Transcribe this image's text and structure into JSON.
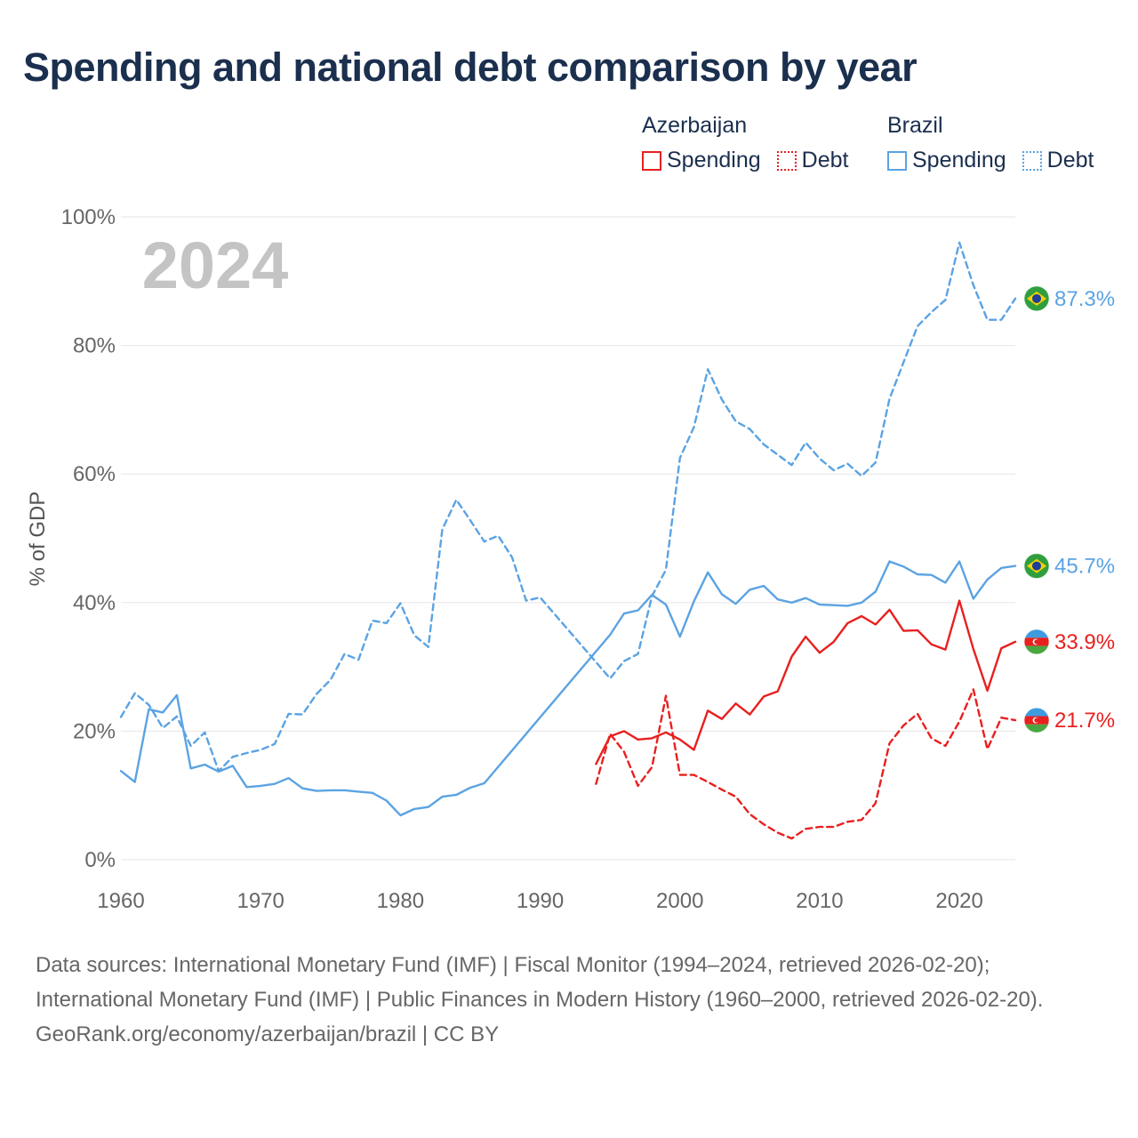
{
  "title": "Spending and national debt comparison by year",
  "legend": {
    "groups": [
      {
        "name": "Azerbaijan",
        "color": "#e8201f",
        "items": [
          "Spending",
          "Debt"
        ]
      },
      {
        "name": "Brazil",
        "color": "#5ba3e3",
        "items": [
          "Spending",
          "Debt"
        ]
      }
    ]
  },
  "footer": {
    "sources": "Data sources: International Monetary Fund (IMF) | Fiscal Monitor (1994–2024, retrieved 2026-02-20); International Monetary Fund (IMF) | Public Finances in Modern History (1960–2000, retrieved 2026-02-20).",
    "credit": "GeoRank.org/economy/azerbaijan/brazil | CC BY"
  },
  "chart_data": {
    "type": "line",
    "year_label": "2024",
    "ylabel": "% of GDP",
    "xlim": [
      1960,
      2024
    ],
    "ylim": [
      0,
      100
    ],
    "xticks": [
      1960,
      1970,
      1980,
      1990,
      2000,
      2010,
      2020
    ],
    "yticks": [
      0,
      20,
      40,
      60,
      80,
      100
    ],
    "ytick_labels": [
      "0%",
      "20%",
      "40%",
      "60%",
      "80%",
      "100%"
    ],
    "series": [
      {
        "name": "Brazil Debt",
        "country": "Brazil",
        "metric": "Debt",
        "color": "#5ba3e3",
        "dash": true,
        "end_label": "87.3%",
        "flag": "brazil",
        "x": [
          1960,
          1961,
          1962,
          1963,
          1964,
          1965,
          1966,
          1967,
          1968,
          1969,
          1970,
          1971,
          1972,
          1973,
          1974,
          1975,
          1976,
          1977,
          1978,
          1979,
          1980,
          1981,
          1982,
          1983,
          1984,
          1985,
          1986,
          1987,
          1988,
          1989,
          1990,
          1995,
          1996,
          1997,
          1998,
          1999,
          2000,
          2001,
          2002,
          2003,
          2004,
          2005,
          2006,
          2007,
          2008,
          2009,
          2010,
          2011,
          2012,
          2013,
          2014,
          2015,
          2016,
          2017,
          2018,
          2019,
          2020,
          2021,
          2022,
          2023,
          2024
        ],
        "y": [
          22.2,
          25.9,
          24.1,
          20.5,
          22.3,
          17.7,
          19.8,
          13.8,
          16.0,
          16.6,
          17.1,
          18.0,
          22.7,
          22.6,
          25.8,
          28.0,
          32.0,
          31.1,
          37.2,
          36.8,
          39.9,
          34.9,
          33.1,
          51.4,
          56.0,
          52.8,
          49.5,
          50.4,
          47.0,
          40.3,
          40.8,
          28.2,
          30.9,
          32.0,
          41.0,
          45.1,
          62.5,
          67.3,
          76.3,
          71.6,
          68.2,
          67.0,
          64.6,
          63.0,
          61.4,
          64.9,
          62.4,
          60.6,
          61.6,
          59.7,
          61.8,
          71.7,
          77.4,
          83.0,
          85.2,
          87.1,
          96.0,
          89.4,
          84.0,
          84.0,
          87.3
        ]
      },
      {
        "name": "Brazil Spending",
        "country": "Brazil",
        "metric": "Spending",
        "color": "#5ba3e3",
        "dash": false,
        "end_label": "45.7%",
        "flag": "brazil",
        "x": [
          1960,
          1961,
          1962,
          1963,
          1964,
          1965,
          1966,
          1967,
          1968,
          1969,
          1970,
          1971,
          1972,
          1973,
          1974,
          1975,
          1976,
          1977,
          1978,
          1979,
          1980,
          1981,
          1982,
          1983,
          1984,
          1985,
          1986,
          1995,
          1996,
          1997,
          1998,
          1999,
          2000,
          2001,
          2002,
          2003,
          2004,
          2005,
          2006,
          2007,
          2008,
          2009,
          2010,
          2011,
          2012,
          2013,
          2014,
          2015,
          2016,
          2017,
          2018,
          2019,
          2020,
          2021,
          2022,
          2023,
          2024
        ],
        "y": [
          13.8,
          12.1,
          23.4,
          22.9,
          25.6,
          14.2,
          14.8,
          13.7,
          14.6,
          11.3,
          11.5,
          11.8,
          12.7,
          11.1,
          10.7,
          10.8,
          10.8,
          10.6,
          10.4,
          9.2,
          6.9,
          7.9,
          8.2,
          9.8,
          10.1,
          11.2,
          11.9,
          35.0,
          38.3,
          38.8,
          41.2,
          39.7,
          34.7,
          40.2,
          44.7,
          41.3,
          39.8,
          42.0,
          42.6,
          40.5,
          40.0,
          40.7,
          39.7,
          39.6,
          39.5,
          40.0,
          41.7,
          46.4,
          45.6,
          44.4,
          44.3,
          43.1,
          46.4,
          40.6,
          43.6,
          45.4,
          45.7
        ]
      },
      {
        "name": "Azerbaijan Spending",
        "country": "Azerbaijan",
        "metric": "Spending",
        "color": "#e8201f",
        "dash": false,
        "end_label": "33.9%",
        "flag": "azerbaijan",
        "x": [
          1994,
          1995,
          1996,
          1997,
          1998,
          1999,
          2000,
          2001,
          2002,
          2003,
          2004,
          2005,
          2006,
          2007,
          2008,
          2009,
          2010,
          2011,
          2012,
          2013,
          2014,
          2015,
          2016,
          2017,
          2018,
          2019,
          2020,
          2021,
          2022,
          2023,
          2024
        ],
        "y": [
          14.9,
          19.2,
          20.0,
          18.7,
          18.9,
          19.8,
          18.7,
          17.1,
          23.2,
          21.9,
          24.3,
          22.6,
          25.4,
          26.2,
          31.6,
          34.7,
          32.2,
          33.9,
          36.8,
          37.9,
          36.6,
          38.9,
          35.6,
          35.7,
          33.5,
          32.7,
          40.3,
          32.8,
          26.3,
          32.9,
          33.9
        ]
      },
      {
        "name": "Azerbaijan Debt",
        "country": "Azerbaijan",
        "metric": "Debt",
        "color": "#e8201f",
        "dash": true,
        "end_label": "21.7%",
        "flag": "azerbaijan",
        "x": [
          1994,
          1995,
          1996,
          1997,
          1998,
          1999,
          2000,
          2001,
          2002,
          2003,
          2004,
          2005,
          2006,
          2007,
          2008,
          2009,
          2010,
          2011,
          2012,
          2013,
          2014,
          2015,
          2016,
          2017,
          2018,
          2019,
          2020,
          2021,
          2022,
          2023,
          2024
        ],
        "y": [
          11.8,
          19.6,
          16.8,
          11.5,
          14.4,
          25.5,
          13.2,
          13.2,
          12.1,
          10.9,
          9.8,
          7.1,
          5.5,
          4.2,
          3.3,
          4.8,
          5.1,
          5.1,
          5.9,
          6.2,
          8.8,
          18.1,
          20.9,
          22.7,
          18.9,
          17.7,
          21.5,
          26.5,
          17.2,
          22.1,
          21.7
        ]
      }
    ]
  }
}
